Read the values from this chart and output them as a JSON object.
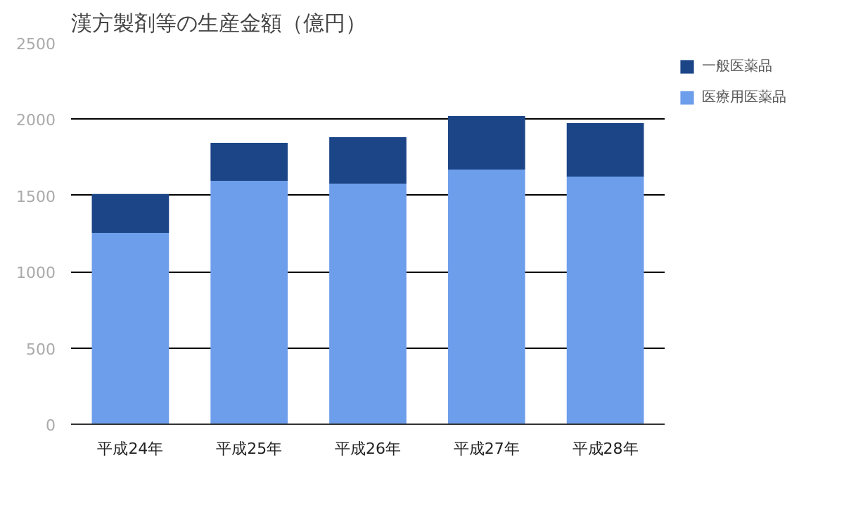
{
  "chart_data": {
    "type": "bar",
    "title": "漢方製剤等の生産金額（億円）",
    "categories": [
      "平成24年",
      "平成25年",
      "平成26年",
      "平成27年",
      "平成28年"
    ],
    "stacked": true,
    "series": [
      {
        "name": "医療用医薬品",
        "color": "#6d9eeb",
        "values": [
          1255,
          1596,
          1578,
          1670,
          1624
        ]
      },
      {
        "name": "一般医薬品",
        "color": "#1c4587",
        "values": [
          255,
          249,
          304,
          350,
          350
        ]
      }
    ],
    "ylim": [
      0,
      2500
    ],
    "yticks": [
      0,
      500,
      1000,
      1500,
      2000,
      2500
    ],
    "grid": "y",
    "legend": "top right"
  }
}
